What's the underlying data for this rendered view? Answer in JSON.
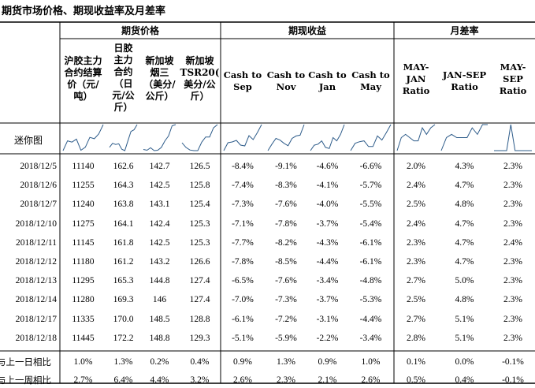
{
  "title": "期货市场价格、期现收益率及月差率",
  "groups": {
    "futures": "期货价格",
    "basis": "期现收益",
    "spread": "月差率"
  },
  "columns": [
    "沪胶主力\n合约结算\n价（元/\n吨）",
    "日胶\n主力\n合约\n（日\n元/公\n斤）",
    "新加坡\n烟三\n（美分/\n公斤）",
    "新加坡\nTSR20(\n美分/公\n斤）",
    "Cash to\nSep",
    "Cash to\nNov",
    "Cash to\nJan",
    "Cash to\nMay",
    "MAY-\nJAN\nRatio",
    "JAN-SEP\nRatio",
    "MAY-\nSEP\nRatio"
  ],
  "sparkline_label": "迷你图",
  "rows": [
    {
      "date": "2018/12/5",
      "values": [
        "11140",
        "162.6",
        "142.7",
        "126.5",
        "-8.4%",
        "-9.1%",
        "-4.6%",
        "-6.6%",
        "2.0%",
        "4.3%",
        "2.3%"
      ]
    },
    {
      "date": "2018/12/6",
      "values": [
        "11255",
        "164.3",
        "142.5",
        "125.8",
        "-7.4%",
        "-8.3%",
        "-4.1%",
        "-5.7%",
        "2.4%",
        "4.7%",
        "2.3%"
      ]
    },
    {
      "date": "2018/12/7",
      "values": [
        "11240",
        "163.8",
        "143.1",
        "125.4",
        "-7.3%",
        "-7.6%",
        "-4.0%",
        "-5.5%",
        "2.5%",
        "4.8%",
        "2.3%"
      ]
    },
    {
      "date": "2018/12/10",
      "values": [
        "11275",
        "164.1",
        "142.4",
        "125.3",
        "-7.1%",
        "-7.8%",
        "-3.7%",
        "-5.4%",
        "2.4%",
        "4.7%",
        "2.3%"
      ]
    },
    {
      "date": "2018/12/11",
      "values": [
        "11145",
        "161.8",
        "142.5",
        "125.3",
        "-7.7%",
        "-8.2%",
        "-4.3%",
        "-6.1%",
        "2.3%",
        "4.7%",
        "2.4%"
      ]
    },
    {
      "date": "2018/12/12",
      "values": [
        "11180",
        "161.2",
        "143.2",
        "126.6",
        "-7.8%",
        "-8.5%",
        "-4.4%",
        "-6.1%",
        "2.3%",
        "4.7%",
        "2.3%"
      ]
    },
    {
      "date": "2018/12/13",
      "values": [
        "11295",
        "165.3",
        "144.8",
        "127.4",
        "-6.5%",
        "-7.6%",
        "-3.4%",
        "-4.8%",
        "2.7%",
        "5.0%",
        "2.3%"
      ]
    },
    {
      "date": "2018/12/14",
      "values": [
        "11280",
        "169.3",
        "146",
        "127.4",
        "-7.0%",
        "-7.3%",
        "-3.7%",
        "-5.3%",
        "2.5%",
        "4.8%",
        "2.3%"
      ]
    },
    {
      "date": "2018/12/17",
      "values": [
        "11335",
        "170.0",
        "148.5",
        "128.8",
        "-6.1%",
        "-7.2%",
        "-3.1%",
        "-4.4%",
        "2.7%",
        "5.1%",
        "2.3%"
      ]
    },
    {
      "date": "2018/12/18",
      "values": [
        "11445",
        "172.2",
        "148.8",
        "129.3",
        "-5.1%",
        "-5.9%",
        "-2.2%",
        "-3.4%",
        "2.8%",
        "5.1%",
        "2.3%"
      ]
    }
  ],
  "summary": [
    {
      "label": "与上一日相比",
      "values": [
        "1.0%",
        "1.3%",
        "0.2%",
        "0.4%",
        "0.9%",
        "1.3%",
        "0.9%",
        "1.0%",
        "0.1%",
        "0.0%",
        "-0.1%"
      ]
    },
    {
      "label": "与上一周相比",
      "values": [
        "2.7%",
        "6.4%",
        "4.4%",
        "3.2%",
        "2.6%",
        "2.3%",
        "2.1%",
        "2.6%",
        "0.5%",
        "0.4%",
        "-0.1%"
      ]
    }
  ]
}
